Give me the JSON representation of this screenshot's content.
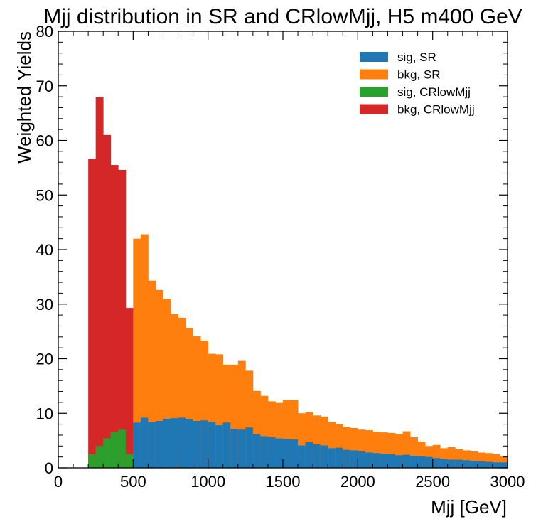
{
  "chart_data": {
    "type": "bar",
    "subtype": "stacked-step-histogram",
    "title": "Mjj distribution in SR and CRlowMjj, H5 m400 GeV",
    "xlabel": "Mjj [GeV]",
    "ylabel": "Weighted Yields",
    "xlim": [
      0,
      3000
    ],
    "ylim": [
      0,
      80
    ],
    "x_ticks": [
      0,
      500,
      1000,
      1500,
      2000,
      2500,
      3000
    ],
    "y_ticks": [
      0,
      10,
      20,
      30,
      40,
      50,
      60,
      70,
      80
    ],
    "grid": false,
    "legend_position": "top-right",
    "bin_width": 50,
    "colors": {
      "sig_sr": "#1f77b4",
      "bkg_sr": "#ff7f0e",
      "sig_cr": "#2ca02c",
      "bkg_cr": "#d62728"
    },
    "legend": [
      {
        "key": "sig_sr",
        "label": "sig, SR"
      },
      {
        "key": "bkg_sr",
        "label": "bkg, SR"
      },
      {
        "key": "sig_cr",
        "label": "sig, CRlowMjj"
      },
      {
        "key": "bkg_cr",
        "label": "bkg, CRlowMjj"
      }
    ],
    "cr_bins": {
      "x_start": [
        200,
        250,
        300,
        350,
        400,
        450
      ],
      "sig": [
        2.5,
        4.0,
        5.4,
        6.5,
        7.0,
        2.5
      ],
      "total": [
        56.6,
        67.9,
        61.0,
        55.5,
        54.6,
        29.3
      ]
    },
    "sr_bins": {
      "x_start": [
        500,
        550,
        600,
        650,
        700,
        750,
        800,
        850,
        900,
        950,
        1000,
        1050,
        1100,
        1150,
        1200,
        1250,
        1300,
        1350,
        1400,
        1450,
        1500,
        1550,
        1600,
        1650,
        1700,
        1750,
        1800,
        1850,
        1900,
        1950,
        2000,
        2050,
        2100,
        2150,
        2200,
        2250,
        2300,
        2350,
        2400,
        2450,
        2500,
        2550,
        2600,
        2650,
        2700,
        2750,
        2800,
        2850,
        2900,
        2950
      ],
      "sig": [
        8.3,
        9.2,
        8.4,
        8.6,
        9.0,
        9.1,
        9.2,
        8.9,
        8.6,
        8.7,
        8.4,
        7.8,
        8.3,
        7.1,
        7.0,
        7.4,
        6.2,
        5.8,
        5.6,
        5.4,
        5.3,
        5.2,
        4.1,
        4.7,
        4.3,
        4.1,
        3.6,
        3.7,
        3.3,
        3.2,
        3.0,
        2.8,
        2.7,
        2.6,
        2.5,
        2.3,
        2.4,
        2.2,
        2.1,
        2.0,
        1.8,
        1.6,
        1.5,
        1.5,
        1.4,
        1.3,
        1.2,
        1.1,
        1.0,
        1.0
      ],
      "total": [
        42.0,
        42.8,
        34.3,
        32.6,
        31.0,
        28.2,
        27.5,
        25.6,
        24.1,
        23.3,
        20.9,
        20.8,
        18.9,
        18.9,
        19.6,
        17.8,
        14.1,
        13.2,
        12.2,
        11.9,
        12.5,
        12.4,
        10.0,
        10.2,
        9.6,
        9.4,
        8.4,
        8.0,
        7.5,
        7.3,
        7.0,
        6.9,
        6.6,
        6.5,
        6.4,
        6.2,
        6.7,
        5.6,
        4.8,
        4.0,
        4.2,
        3.6,
        3.8,
        3.4,
        3.2,
        3.0,
        2.8,
        2.7,
        2.5,
        2.1
      ]
    }
  }
}
